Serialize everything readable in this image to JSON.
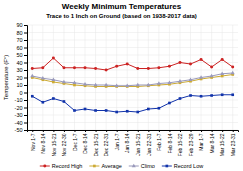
{
  "chart_data": {
    "type": "line",
    "title": "Weekly Minimum Temperatures",
    "subtitle": "Trace to 1 Inch on Ground (based on 1938-2017 data)",
    "ylabel": "Temperature (F°)",
    "categories": [
      "Nov 1-7",
      "Nov 8-14",
      "Nov 15-21",
      "Nov 22-30",
      "Dec 1-7",
      "Dec 8-14",
      "Dec 15-21",
      "Dec 22-31",
      "Jan 1-7",
      "Jan 8-14",
      "Jan 15-21",
      "Jan 22-31",
      "Feb 1-7",
      "Feb 8-14",
      "Feb 15-22",
      "Feb 23-29",
      "Mar 1-7",
      "Mar 8-14",
      "Mar 15-22",
      "Mar 23-31"
    ],
    "series": [
      {
        "name": "Record High",
        "color": "#cc2222",
        "marker": "circle",
        "values": [
          32,
          33,
          46,
          33,
          33,
          33,
          32,
          30,
          35,
          38,
          32,
          32,
          33,
          35,
          40,
          38,
          44,
          34,
          44,
          34
        ]
      },
      {
        "name": "Average",
        "color": "#ccaa33",
        "marker": "square",
        "values": [
          20,
          17,
          14,
          12,
          10,
          9,
          8,
          8,
          8,
          8,
          8,
          9,
          10,
          11,
          13,
          15,
          18,
          20,
          22,
          24
        ]
      },
      {
        "name": "Climo",
        "color": "#9999bb",
        "marker": "triangle",
        "values": [
          22,
          19,
          17,
          14,
          13,
          11,
          10,
          10,
          9,
          9,
          10,
          10,
          12,
          13,
          15,
          17,
          20,
          22,
          25,
          26
        ]
      },
      {
        "name": "Record Low",
        "color": "#1133aa",
        "marker": "square",
        "values": [
          -5,
          -13,
          -8,
          -12,
          -24,
          -22,
          -24,
          -24,
          -26,
          -25,
          -26,
          -22,
          -21,
          -14,
          -8,
          -4,
          -5,
          -4,
          -3,
          -3
        ]
      }
    ],
    "ylim": [
      -50,
      90
    ],
    "yticks": [
      -50,
      -40,
      -30,
      -20,
      -10,
      0,
      10,
      20,
      30,
      40,
      50,
      60,
      70,
      80,
      90
    ],
    "grid": true,
    "legend": "bottom"
  }
}
